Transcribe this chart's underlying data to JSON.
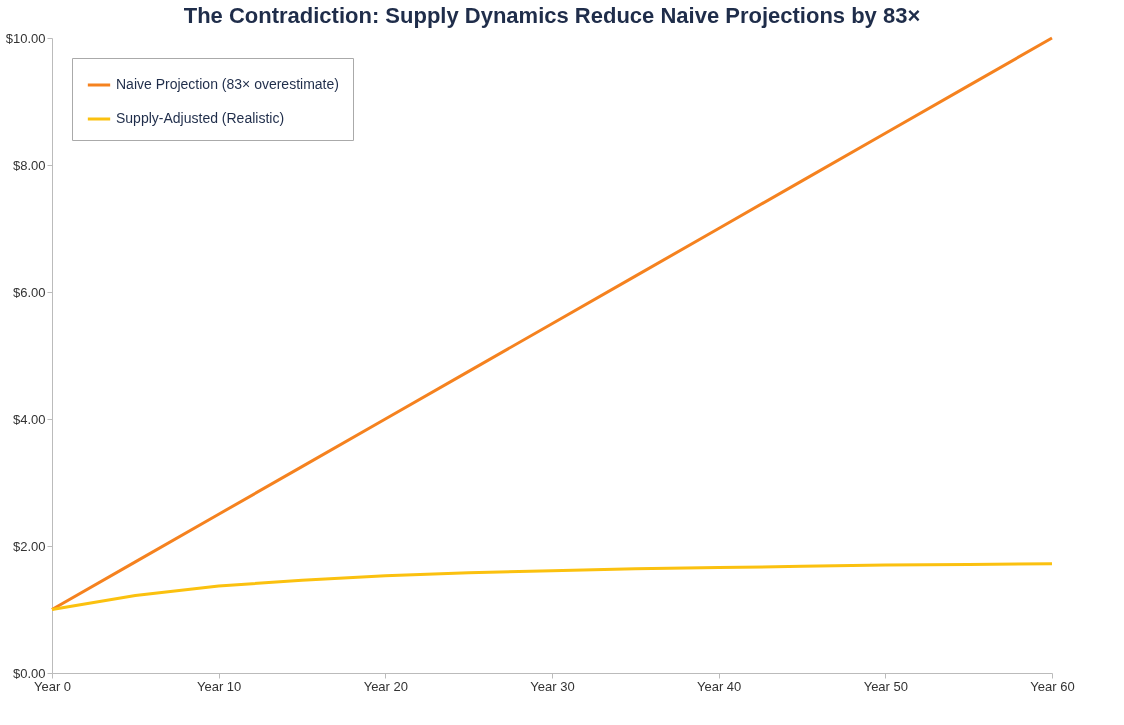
{
  "chart_data": {
    "type": "line",
    "title": "The Contradiction: Supply Dynamics Reduce Naive Projections by 83×",
    "categories": [
      "Year 0",
      null,
      "Year 10",
      null,
      "Year 20",
      null,
      "Year 30",
      null,
      "Year 40",
      null,
      "Year 50",
      null,
      "Year 60"
    ],
    "series": [
      {
        "name": "Naive Projection (83× overestimate)",
        "color": "#f5821f",
        "values": [
          1.0,
          1.75,
          2.5,
          3.25,
          4.0,
          4.75,
          5.5,
          6.25,
          7.0,
          7.75,
          8.5,
          9.25,
          10.0
        ]
      },
      {
        "name": "Supply-Adjusted (Realistic)",
        "color": "#fbc10f",
        "values": [
          1.0,
          1.22,
          1.37,
          1.46,
          1.53,
          1.58,
          1.61,
          1.64,
          1.66,
          1.68,
          1.7,
          1.71,
          1.72
        ]
      }
    ],
    "ylim": [
      0,
      10
    ],
    "yticks": [
      {
        "value": 0,
        "label": "$0.00"
      },
      {
        "value": 2,
        "label": "$2.00"
      },
      {
        "value": 4,
        "label": "$4.00"
      },
      {
        "value": 6,
        "label": "$6.00"
      },
      {
        "value": 8,
        "label": "$8.00"
      },
      {
        "value": 10,
        "label": "$10.00"
      }
    ],
    "grid": false,
    "legend": "top left",
    "marker": "none",
    "line_style": "solid"
  }
}
